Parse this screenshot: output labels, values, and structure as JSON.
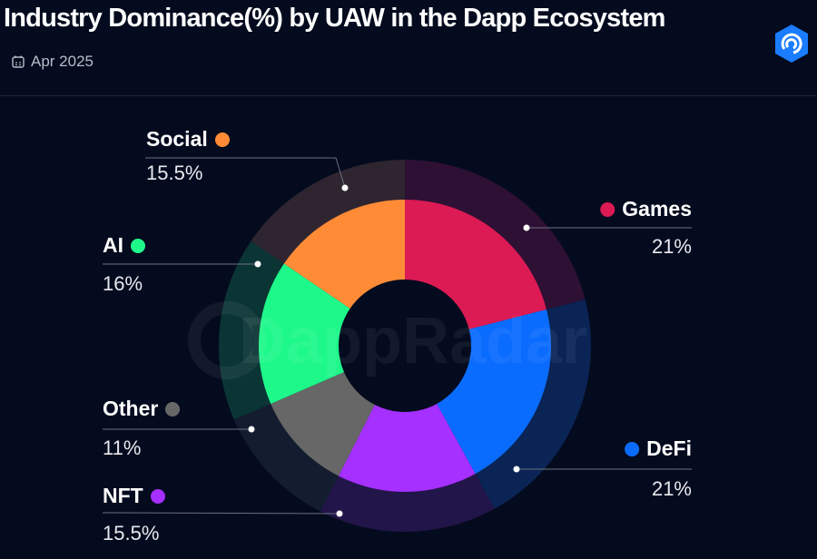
{
  "header": {
    "title": "Industry Dominance(%) by UAW in the Dapp Ecosystem",
    "date": "Apr 2025",
    "calendar_icon": "calendar-icon",
    "logo": "DappRadar",
    "watermark": "DappRadar"
  },
  "chart_data": {
    "type": "pie",
    "title": "Industry Dominance(%) by UAW in the Dapp Ecosystem",
    "donut": true,
    "slices": [
      {
        "label": "Games",
        "value": 21,
        "display": "21%",
        "color": "#dc1a54",
        "ring_color": "#2e1034"
      },
      {
        "label": "DeFi",
        "value": 21,
        "display": "21%",
        "color": "#0a6cff",
        "ring_color": "#0a2455"
      },
      {
        "label": "NFT",
        "value": 15.5,
        "display": "15.5%",
        "color": "#a530ff",
        "ring_color": "#22154a"
      },
      {
        "label": "Other",
        "value": 11,
        "display": "11%",
        "color": "#676767",
        "ring_color": "#141c30"
      },
      {
        "label": "AI",
        "value": 16,
        "display": "16%",
        "color": "#1ef88a",
        "ring_color": "#0b3535"
      },
      {
        "label": "Social",
        "value": 15.5,
        "display": "15.5%",
        "color": "#ff8b36",
        "ring_color": "#2e2530"
      }
    ]
  }
}
